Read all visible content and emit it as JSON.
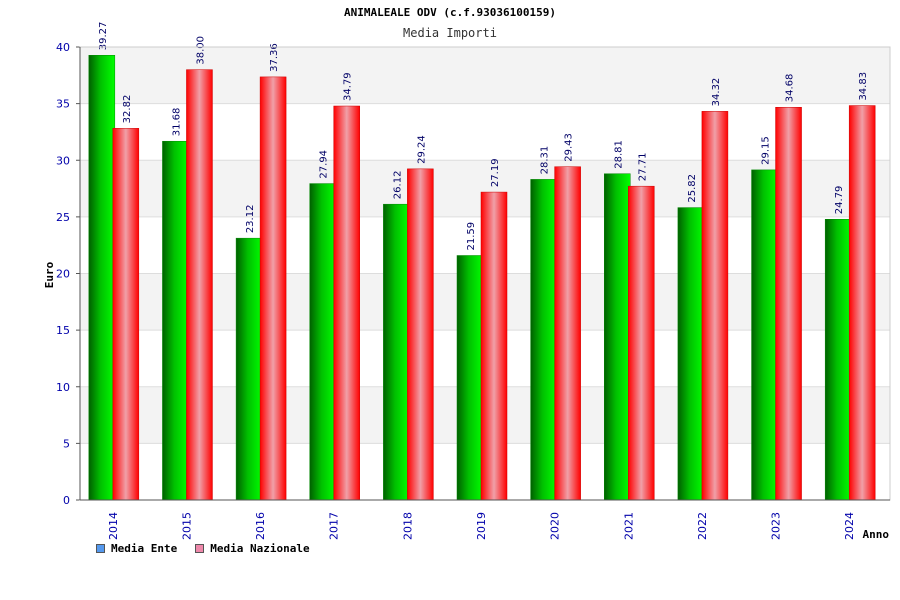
{
  "chart_data": {
    "type": "bar",
    "title": "ANIMALEALE ODV (c.f.93036100159)",
    "subtitle": "Media Importi",
    "xlabel": "Anno",
    "ylabel": "Euro",
    "ylim": [
      0,
      40
    ],
    "yticks": [
      0,
      5,
      10,
      15,
      20,
      25,
      30,
      35,
      40
    ],
    "categories": [
      "2014",
      "2015",
      "2016",
      "2017",
      "2018",
      "2019",
      "2020",
      "2021",
      "2022",
      "2023",
      "2024"
    ],
    "series": [
      {
        "name": "Media Ente",
        "color": "#00c000",
        "values": [
          39.27,
          31.68,
          23.12,
          27.94,
          26.12,
          21.59,
          28.31,
          28.81,
          25.82,
          29.15,
          24.79
        ]
      },
      {
        "name": "Media Nazionale",
        "color": "#ff0000",
        "values": [
          32.82,
          38.0,
          37.36,
          34.79,
          29.24,
          27.19,
          29.43,
          27.71,
          34.32,
          34.68,
          34.83
        ]
      }
    ],
    "value_labels": [
      [
        "39.27",
        "31.68",
        "23.12",
        "27.94",
        "26.12",
        "21.59",
        "28.31",
        "28.81",
        "25.82",
        "29.15",
        "24.79"
      ],
      [
        "32.82",
        "38.00",
        "37.36",
        "34.79",
        "29.24",
        "27.19",
        "29.43",
        "27.71",
        "34.32",
        "34.68",
        "34.83"
      ]
    ],
    "legend": {
      "placement": "bottom-left",
      "items": [
        {
          "label": "Media Ente",
          "color": "#5599ee"
        },
        {
          "label": "Media Nazionale",
          "color": "#ee88aa"
        }
      ]
    },
    "grid": true
  }
}
